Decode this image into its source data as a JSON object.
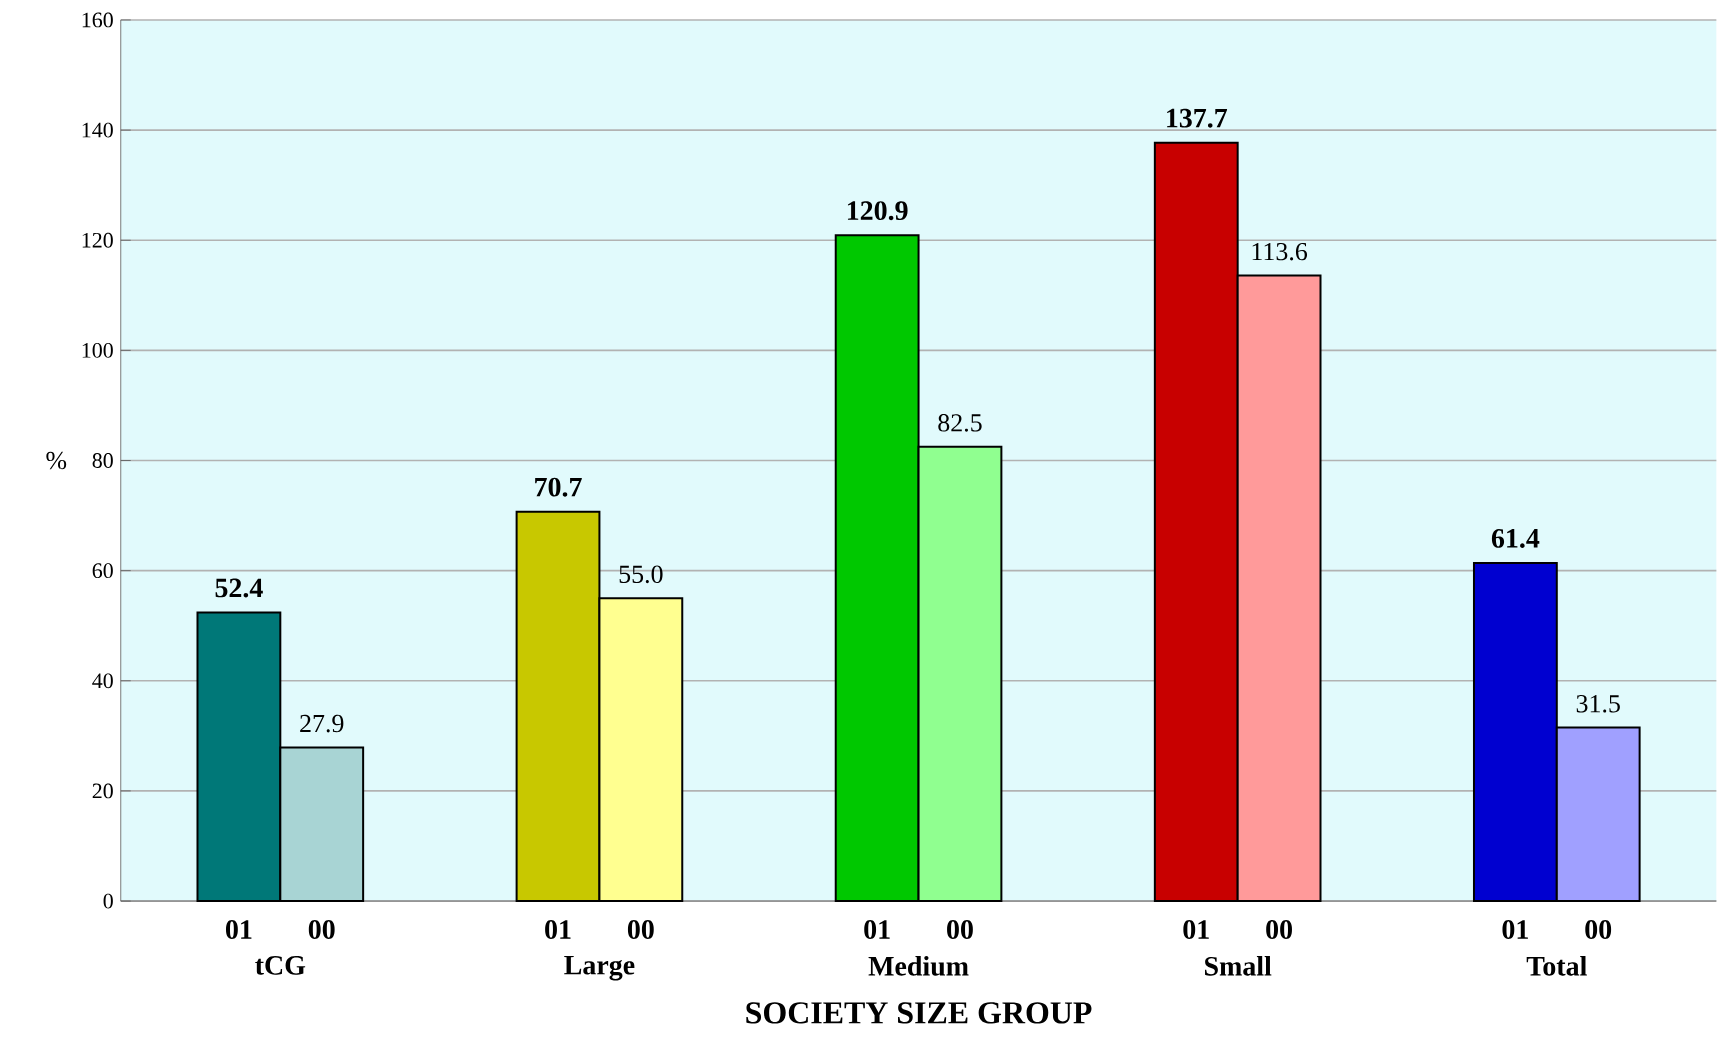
{
  "chart_data": {
    "type": "bar",
    "xlabel": "SOCIETY SIZE GROUP",
    "ylabel": "%",
    "categories": [
      "tCG",
      "Large",
      "Medium",
      "Small",
      "Total"
    ],
    "series": [
      {
        "name": "01",
        "colors": [
          "#007878",
          "#c8c800",
          "#00c800",
          "#c80000",
          "#0000d0"
        ],
        "values": [
          52.4,
          70.7,
          120.9,
          137.7,
          61.4
        ],
        "value_labels": [
          "52.4",
          "70.7",
          "120.9",
          "137.7",
          "61.4"
        ]
      },
      {
        "name": "00",
        "colors": [
          "#a8d4d4",
          "#ffff90",
          "#90ff90",
          "#ff9a9a",
          "#a0a0ff"
        ],
        "values": [
          27.9,
          55.0,
          82.5,
          113.6,
          31.5
        ],
        "value_labels": [
          "27.9",
          "55.0",
          "82.5",
          "113.6",
          "31.5"
        ]
      }
    ],
    "ylim": [
      0,
      160
    ],
    "yticks": [
      0,
      20,
      40,
      60,
      80,
      100,
      120,
      140,
      160
    ],
    "grid": "y"
  }
}
